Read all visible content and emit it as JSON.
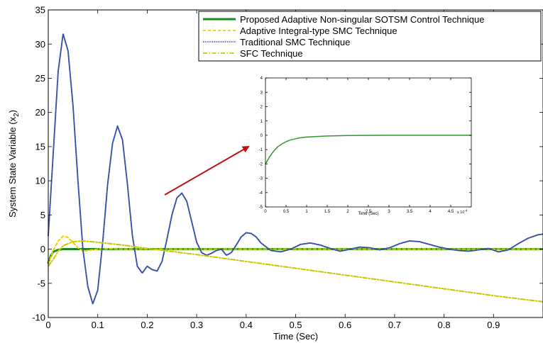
{
  "chart_data": [
    {
      "type": "line",
      "title": "",
      "xlabel": "Time (Sec)",
      "ylabel": "System State Variable (x",
      "ylabel_sub": "2",
      "ylabel_close": ")",
      "xlim": [
        0,
        1
      ],
      "ylim": [
        -10,
        35
      ],
      "xticks": [
        0,
        0.1,
        0.2,
        0.3,
        0.4,
        0.5,
        0.6,
        0.7,
        0.8,
        0.9
      ],
      "xtick_labels": [
        "0",
        "0.1",
        "0.2",
        "0.3",
        "0.4",
        "0.5",
        "0.6",
        "0.7",
        "0.8",
        "0.9"
      ],
      "yticks": [
        -10,
        -5,
        0,
        5,
        10,
        15,
        20,
        25,
        30,
        35
      ],
      "ytick_labels": [
        "-10",
        "-5",
        "0",
        "5",
        "10",
        "15",
        "20",
        "25",
        "30",
        "35"
      ],
      "grid": false,
      "legend_position": "top-right",
      "series": [
        {
          "name": "Proposed Adaptive Non-singular SOTSM Control Technique",
          "color": "#1a8a1a",
          "style": "solid",
          "x": [
            0,
            0.005,
            0.01,
            0.02,
            0.03,
            0.05,
            1.0
          ],
          "y": [
            -2,
            -1.0,
            -0.4,
            -0.1,
            0,
            0,
            0
          ]
        },
        {
          "name": "Adaptive Integral-type SMC Technique",
          "color": "#f0d000",
          "style": "dashed",
          "x": [
            0,
            0.01,
            0.02,
            0.03,
            0.04,
            0.05,
            0.06,
            0.07,
            0.08,
            0.1,
            0.12,
            0.15,
            0.2,
            1.0
          ],
          "y": [
            -2.2,
            -0.2,
            1.2,
            1.9,
            1.7,
            1.0,
            0.2,
            -0.3,
            -0.2,
            0.0,
            0.05,
            0,
            0,
            0
          ]
        },
        {
          "name": "Traditional SMC Technique",
          "color": "#3a4fa8",
          "style": "dotted",
          "x": [
            0,
            0.01,
            0.02,
            0.03,
            0.04,
            0.05,
            0.06,
            0.07,
            0.08,
            0.09,
            0.1,
            0.11,
            0.12,
            0.13,
            0.14,
            0.15,
            0.16,
            0.17,
            0.18,
            0.19,
            0.2,
            0.21,
            0.22,
            0.23,
            0.24,
            0.25,
            0.26,
            0.27,
            0.28,
            0.29,
            0.3,
            0.31,
            0.32,
            0.33,
            0.34,
            0.35,
            0.36,
            0.37,
            0.38,
            0.39,
            0.4,
            0.41,
            0.42,
            0.43,
            0.45,
            0.47,
            0.49,
            0.51,
            0.53,
            0.55,
            0.57,
            0.59,
            0.61,
            0.63,
            0.65,
            0.67,
            0.69,
            0.71,
            0.73,
            0.75,
            0.77,
            0.79,
            0.81,
            0.83,
            0.85,
            0.87,
            0.89,
            0.91,
            0.93,
            0.95,
            0.97,
            0.99,
            1.0
          ],
          "y": [
            2,
            14,
            26,
            31.5,
            29,
            21,
            10,
            0,
            -5.5,
            -8,
            -6,
            1,
            9.5,
            15.5,
            18,
            16,
            9.5,
            2,
            -2.5,
            -3.5,
            -2.5,
            -3,
            -3.2,
            -1.8,
            1.5,
            5,
            7.5,
            8.2,
            7,
            4,
            1,
            -0.5,
            -0.9,
            -0.6,
            -0.2,
            0,
            -0.9,
            -0.5,
            0.6,
            1.8,
            2.4,
            2.3,
            1.8,
            0.9,
            -0.2,
            -0.4,
            0,
            0.7,
            0.9,
            0.6,
            0.1,
            -0.3,
            0,
            0.3,
            0.2,
            -0.1,
            0.2,
            0.8,
            1.2,
            1.1,
            0.7,
            0.3,
            0,
            -0.2,
            -0.3,
            -0.1,
            0.1,
            -0.4,
            -0.1,
            0.8,
            1.6,
            2.1,
            2.2
          ]
        },
        {
          "name": "SFC Technique",
          "color": "#c8c800",
          "style": "dashdot",
          "x": [
            0,
            0.01,
            0.02,
            0.03,
            0.05,
            0.07,
            0.1,
            0.15,
            0.2,
            0.3,
            0.4,
            0.5,
            0.6,
            0.7,
            0.8,
            0.9,
            1.0
          ],
          "y": [
            -2.5,
            -1.5,
            -0.3,
            0.5,
            1.1,
            1.2,
            1.0,
            0.6,
            0.1,
            -0.8,
            -1.8,
            -2.8,
            -3.8,
            -4.8,
            -5.8,
            -6.8,
            -7.7
          ]
        }
      ]
    },
    {
      "type": "line",
      "title": "",
      "xlabel": "Time (Sec)",
      "ylabel": "",
      "x_multiplier": "x 10",
      "x_multiplier_exp": "-4",
      "xlim": [
        0,
        5
      ],
      "ylim": [
        -5,
        4
      ],
      "xticks": [
        0,
        0.5,
        1,
        1.5,
        2,
        2.5,
        3,
        3.5,
        4,
        4.5
      ],
      "xtick_labels": [
        "0",
        "0.5",
        "1",
        "1.5",
        "2",
        "2.5",
        "3",
        "3.5",
        "4",
        "4.5"
      ],
      "yticks": [
        -5,
        -4,
        -3,
        -2,
        -1,
        0,
        1,
        2,
        3,
        4
      ],
      "ytick_labels": [
        "-5",
        "-4",
        "-3",
        "-2",
        "-1",
        "0",
        "1",
        "2",
        "3",
        "4"
      ],
      "grid": false,
      "series": [
        {
          "color": "#2a9a2a",
          "style": "solid",
          "x": [
            0,
            0.1,
            0.2,
            0.3,
            0.4,
            0.5,
            0.6,
            0.8,
            1.0,
            1.5,
            2,
            3,
            4,
            5
          ],
          "y": [
            -2,
            -1.5,
            -1.1,
            -0.8,
            -0.6,
            -0.45,
            -0.33,
            -0.2,
            -0.12,
            -0.05,
            -0.02,
            0,
            0,
            0
          ]
        }
      ]
    }
  ]
}
